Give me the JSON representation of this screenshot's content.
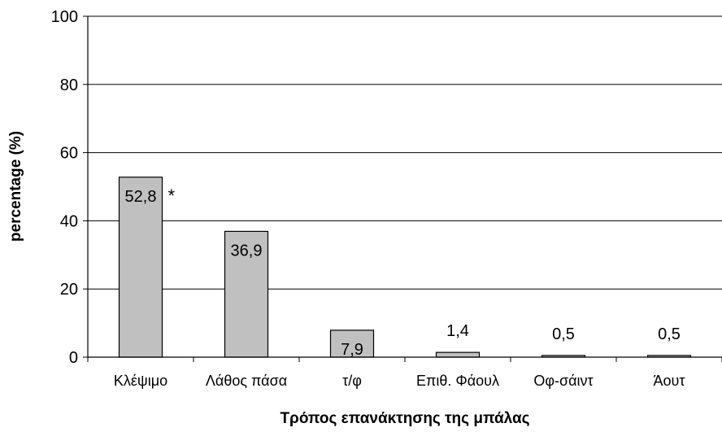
{
  "chart_data": {
    "type": "bar",
    "categories": [
      "Κλέψιμο",
      "Λάθος πάσα",
      "τ/φ",
      "Επιθ. Φάουλ",
      "Οφ-σάιντ",
      "Άουτ"
    ],
    "values": [
      52.8,
      36.9,
      7.9,
      1.4,
      0.5,
      0.5
    ],
    "data_labels": [
      "52,8",
      "36,9",
      "7,9",
      "1,4",
      "0,5",
      "0,5"
    ],
    "annotations": [
      {
        "category_index": 0,
        "text": "*"
      }
    ],
    "xlabel": "Τρόπος επανάκτησης της μπάλας",
    "ylabel": "percentage (%)",
    "ylim": [
      0,
      100
    ],
    "yticks": [
      0,
      20,
      40,
      60,
      80,
      100
    ],
    "grid": "horizontal",
    "legend": "none",
    "colors": {
      "bar_fill": "#c0c0c0",
      "bar_stroke": "#000000",
      "grid": "#000000"
    }
  }
}
